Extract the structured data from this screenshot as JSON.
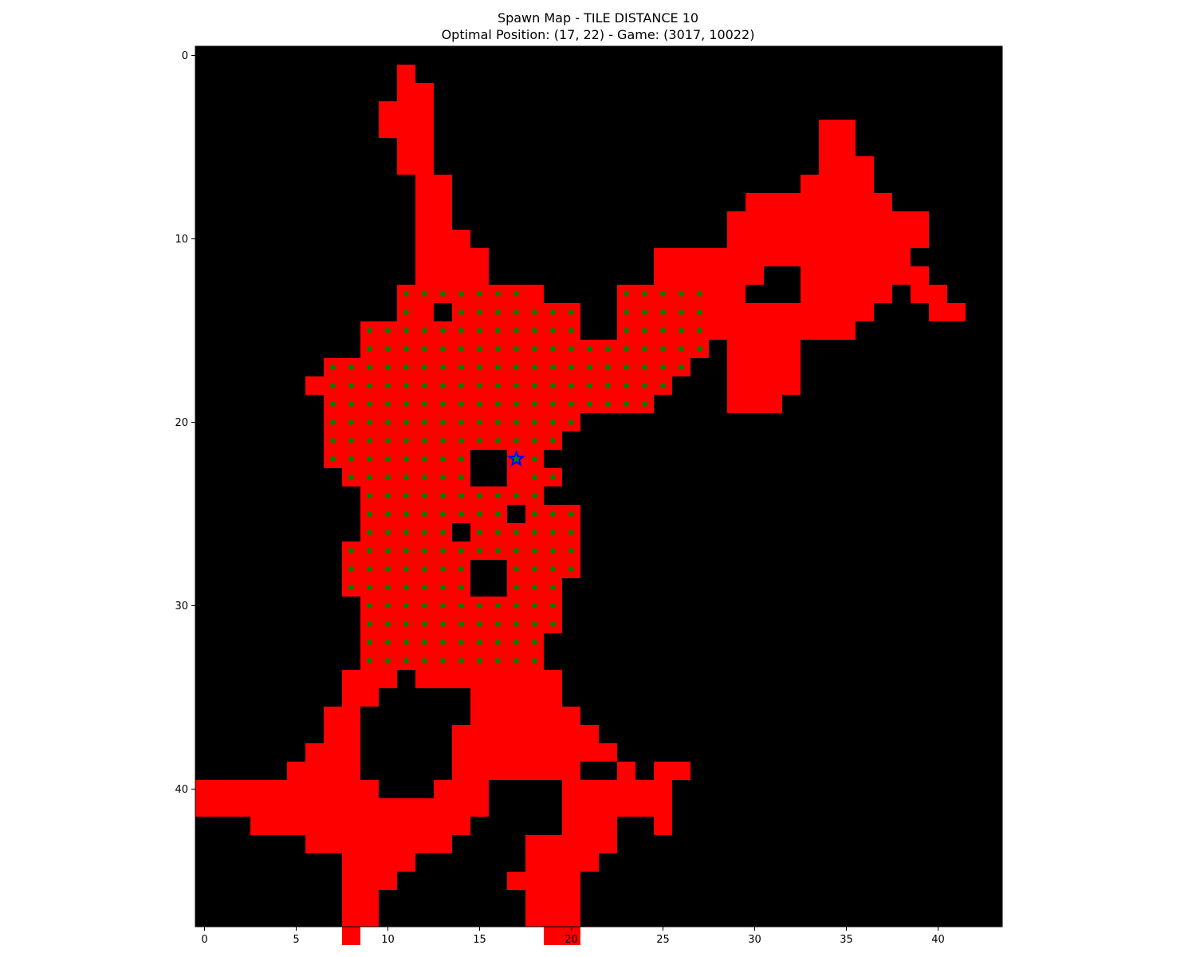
{
  "title_line1": "Spawn Map - TILE DISTANCE 10",
  "title_line2": "Optimal Position: (17, 22) - Game: (3017, 10022)",
  "chart_data": {
    "type": "heatmap",
    "title": "Spawn Map - TILE DISTANCE 10",
    "subtitle": "Optimal Position: (17, 22) - Game: (3017, 10022)",
    "xlabel": "",
    "ylabel": "",
    "xlim": [
      -0.5,
      43.5
    ],
    "ylim": [
      47.5,
      -0.5
    ],
    "grid": false,
    "x_ticks": [
      0,
      5,
      10,
      15,
      20,
      25,
      30,
      35,
      40
    ],
    "y_ticks": [
      0,
      10,
      20,
      30,
      40
    ],
    "colors": {
      "background": "#000000",
      "walkable": "#ff0000",
      "spawn_point": "#008000",
      "optimal_marker": "#0000ff"
    },
    "walkable_tiles": {
      "1": [
        [
          11,
          11
        ]
      ],
      "2": [
        [
          11,
          12
        ]
      ],
      "3": [
        [
          10,
          12
        ]
      ],
      "4": [
        [
          10,
          12
        ],
        [
          34,
          35
        ]
      ],
      "5": [
        [
          11,
          12
        ],
        [
          34,
          35
        ]
      ],
      "6": [
        [
          11,
          12
        ],
        [
          34,
          36
        ]
      ],
      "7": [
        [
          12,
          13
        ],
        [
          33,
          36
        ]
      ],
      "8": [
        [
          12,
          13
        ],
        [
          30,
          37
        ]
      ],
      "9": [
        [
          12,
          13
        ],
        [
          29,
          39
        ]
      ],
      "10": [
        [
          12,
          14
        ],
        [
          29,
          39
        ]
      ],
      "11": [
        [
          12,
          15
        ],
        [
          25,
          38
        ]
      ],
      "12": [
        [
          12,
          15
        ],
        [
          25,
          30
        ],
        [
          33,
          39
        ]
      ],
      "13": [
        [
          11,
          18
        ],
        [
          23,
          29
        ],
        [
          33,
          37
        ],
        [
          39,
          40
        ]
      ],
      "14": [
        [
          11,
          12
        ],
        [
          14,
          20
        ],
        [
          23,
          36
        ],
        [
          40,
          41
        ]
      ],
      "15": [
        [
          9,
          20
        ],
        [
          23,
          35
        ]
      ],
      "16": [
        [
          9,
          27
        ],
        [
          29,
          32
        ]
      ],
      "17": [
        [
          7,
          26
        ],
        [
          29,
          32
        ]
      ],
      "18": [
        [
          6,
          25
        ],
        [
          29,
          32
        ]
      ],
      "19": [
        [
          7,
          24
        ],
        [
          29,
          31
        ]
      ],
      "20": [
        [
          7,
          20
        ]
      ],
      "21": [
        [
          7,
          19
        ]
      ],
      "22": [
        [
          7,
          14
        ],
        [
          17,
          18
        ]
      ],
      "23": [
        [
          8,
          14
        ],
        [
          17,
          19
        ]
      ],
      "24": [
        [
          9,
          18
        ]
      ],
      "25": [
        [
          9,
          16
        ],
        [
          18,
          20
        ]
      ],
      "26": [
        [
          9,
          13
        ],
        [
          15,
          20
        ]
      ],
      "27": [
        [
          8,
          20
        ]
      ],
      "28": [
        [
          8,
          14
        ],
        [
          17,
          20
        ]
      ],
      "29": [
        [
          8,
          14
        ],
        [
          17,
          19
        ]
      ],
      "30": [
        [
          9,
          19
        ]
      ],
      "31": [
        [
          9,
          19
        ]
      ],
      "32": [
        [
          9,
          18
        ]
      ],
      "33": [
        [
          9,
          18
        ]
      ],
      "34": [
        [
          8,
          10
        ],
        [
          12,
          19
        ]
      ],
      "35": [
        [
          8,
          9
        ],
        [
          15,
          19
        ]
      ],
      "36": [
        [
          7,
          8
        ],
        [
          15,
          20
        ]
      ],
      "37": [
        [
          7,
          8
        ],
        [
          14,
          21
        ]
      ],
      "38": [
        [
          6,
          8
        ],
        [
          14,
          22
        ]
      ],
      "39": [
        [
          5,
          8
        ],
        [
          14,
          20
        ],
        [
          23,
          23
        ],
        [
          25,
          26
        ]
      ],
      "40": [
        [
          0,
          9
        ],
        [
          13,
          15
        ],
        [
          20,
          25
        ]
      ],
      "41": [
        [
          0,
          15
        ],
        [
          20,
          25
        ]
      ],
      "42": [
        [
          3,
          14
        ],
        [
          20,
          22
        ],
        [
          25,
          25
        ]
      ],
      "43": [
        [
          6,
          13
        ],
        [
          18,
          22
        ]
      ],
      "44": [
        [
          8,
          11
        ],
        [
          18,
          21
        ]
      ],
      "45": [
        [
          8,
          10
        ],
        [
          17,
          20
        ]
      ],
      "46": [
        [
          8,
          9
        ],
        [
          18,
          20
        ]
      ],
      "47": [
        [
          8,
          9
        ],
        [
          18,
          20
        ]
      ],
      "48": [
        [
          8,
          8
        ],
        [
          19,
          20
        ]
      ]
    },
    "spawn_points": {
      "13": [
        [
          11,
          17
        ],
        [
          23,
          27
        ]
      ],
      "14": [
        [
          11,
          11
        ],
        [
          14,
          20
        ],
        [
          23,
          27
        ]
      ],
      "15": [
        [
          9,
          20
        ],
        [
          23,
          27
        ]
      ],
      "16": [
        [
          9,
          27
        ]
      ],
      "17": [
        [
          7,
          26
        ]
      ],
      "18": [
        [
          7,
          25
        ]
      ],
      "19": [
        [
          7,
          24
        ]
      ],
      "20": [
        [
          7,
          20
        ]
      ],
      "21": [
        [
          7,
          19
        ]
      ],
      "22": [
        [
          7,
          14
        ],
        [
          17,
          18
        ]
      ],
      "23": [
        [
          8,
          14
        ],
        [
          18,
          19
        ]
      ],
      "24": [
        [
          9,
          18
        ]
      ],
      "25": [
        [
          9,
          16
        ],
        [
          18,
          20
        ]
      ],
      "26": [
        [
          9,
          13
        ],
        [
          15,
          20
        ]
      ],
      "27": [
        [
          8,
          20
        ]
      ],
      "28": [
        [
          8,
          14
        ],
        [
          17,
          20
        ]
      ],
      "29": [
        [
          8,
          14
        ],
        [
          17,
          19
        ]
      ],
      "30": [
        [
          9,
          19
        ]
      ],
      "31": [
        [
          9,
          19
        ]
      ],
      "32": [
        [
          9,
          18
        ]
      ],
      "33": [
        [
          9,
          18
        ]
      ]
    },
    "optimal_position": {
      "x": 17,
      "y": 22
    },
    "game_position": {
      "x": 3017,
      "y": 10022
    }
  }
}
